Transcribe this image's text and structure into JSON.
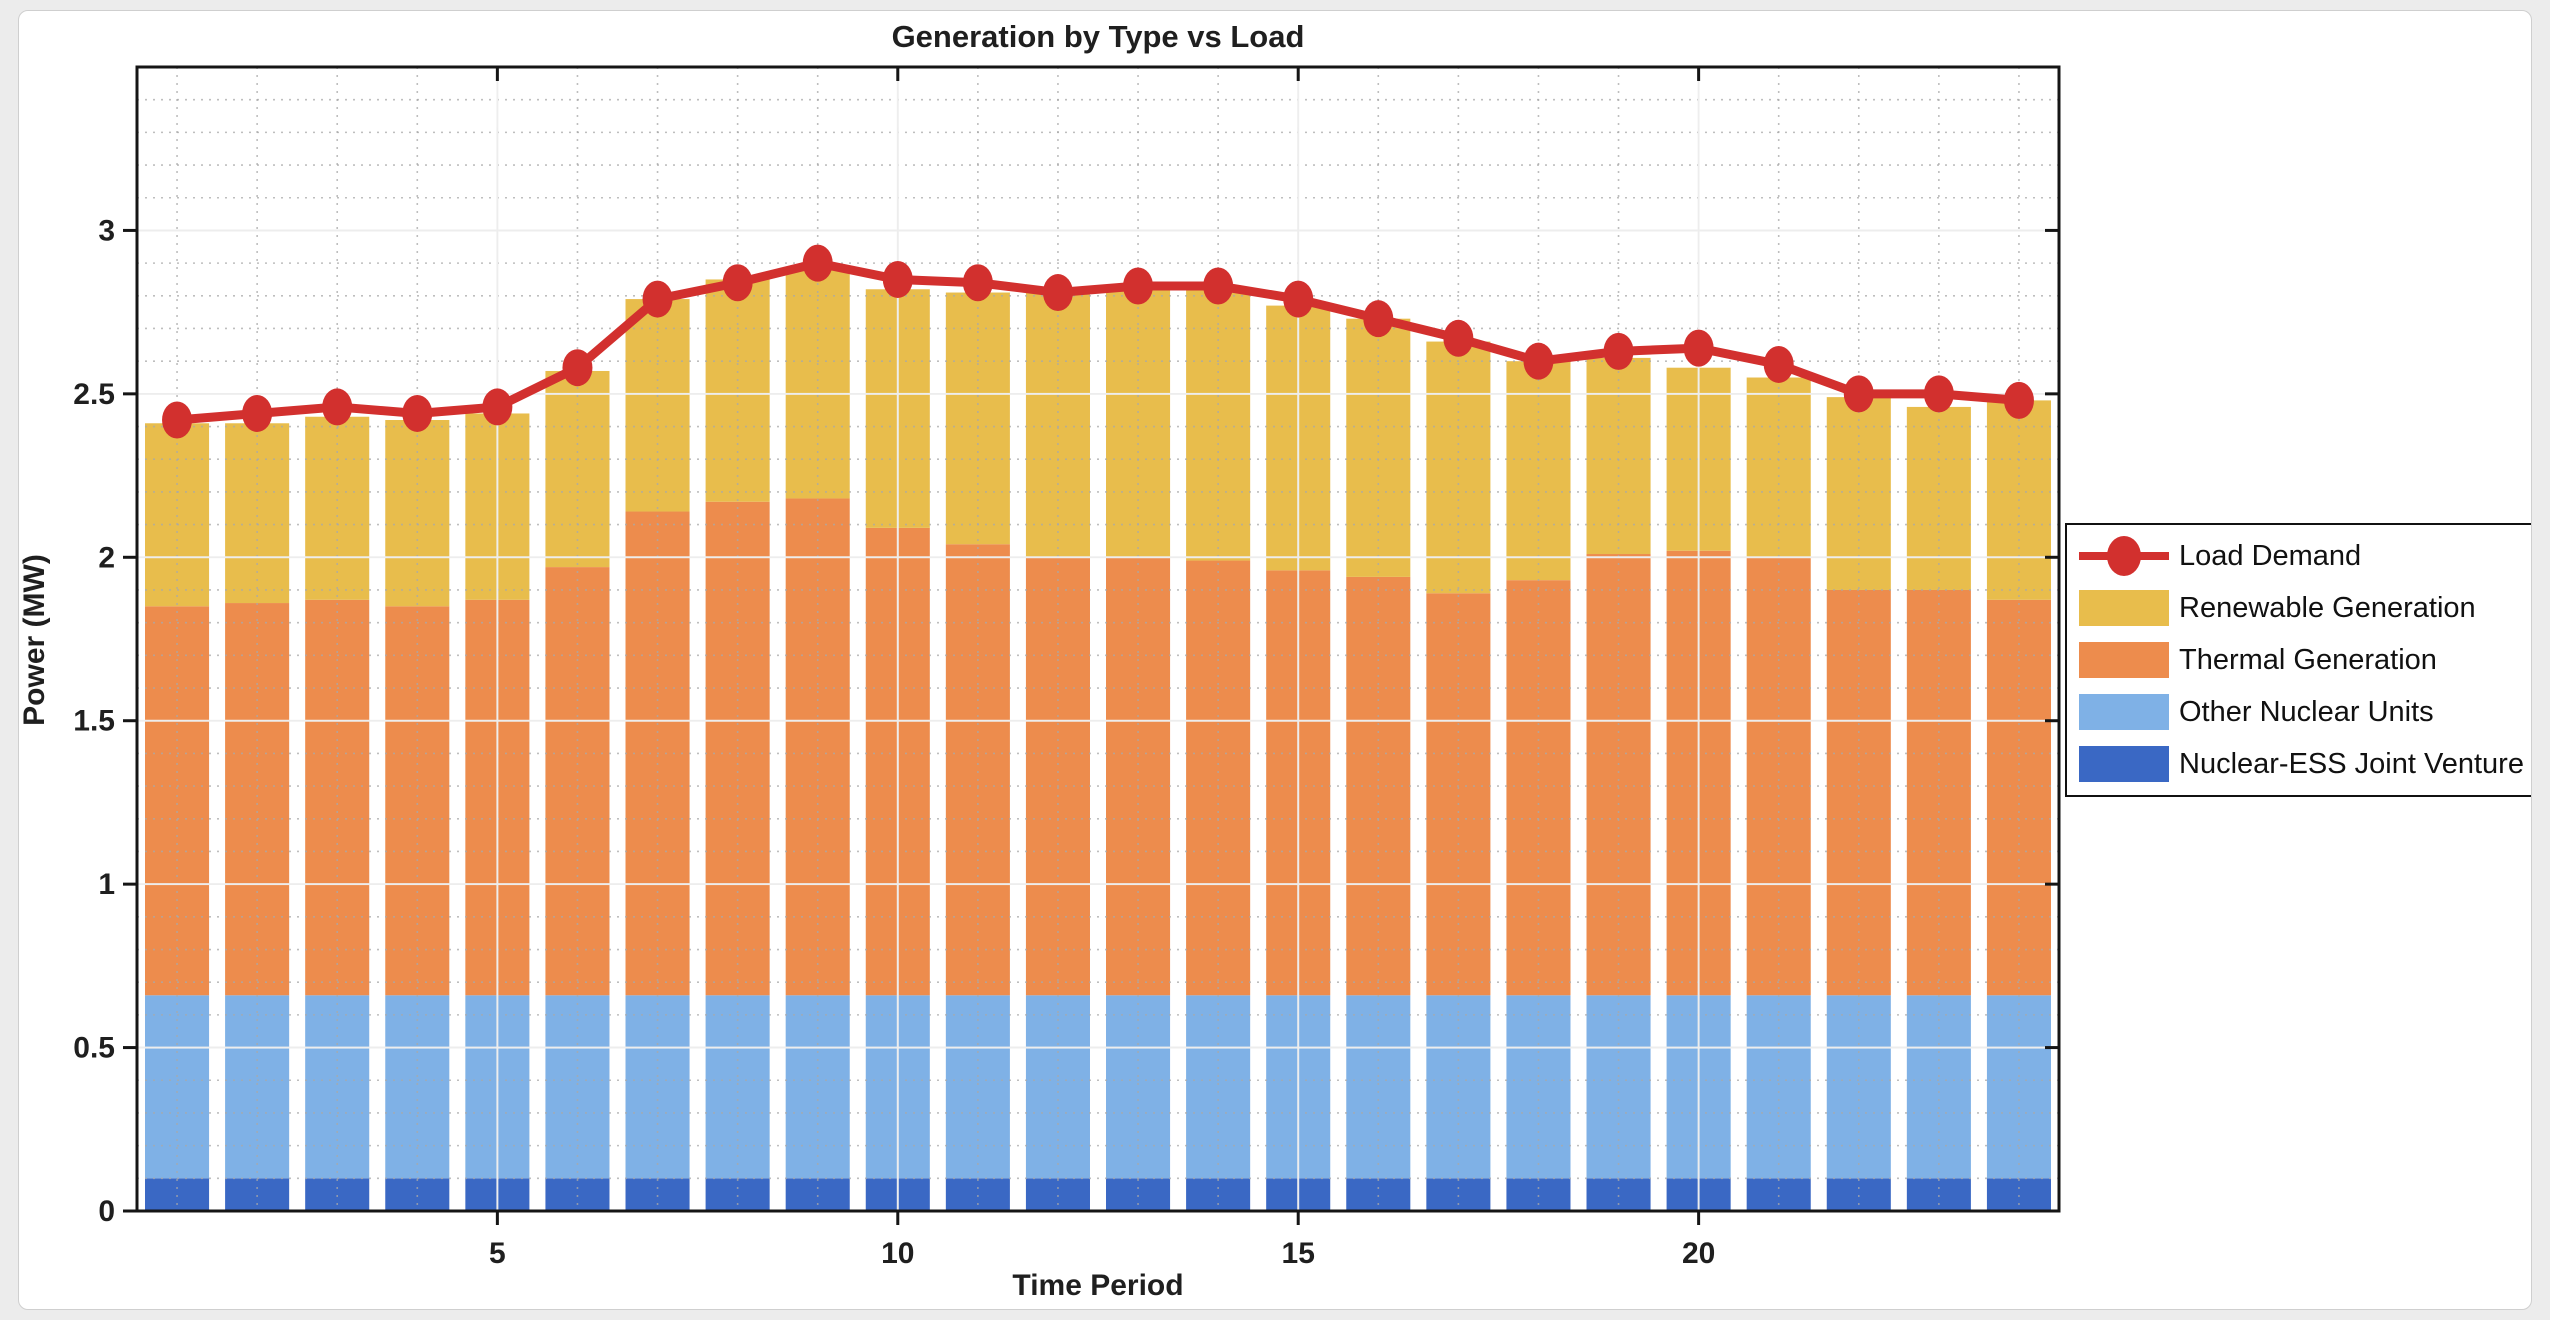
{
  "chart_data": {
    "type": "bar",
    "subtype": "stacked-bars-with-line-overlay",
    "title": "Generation by Type vs Load",
    "xlabel": "Time Period",
    "ylabel": "Power (MW)",
    "x": [
      1,
      2,
      3,
      4,
      5,
      6,
      7,
      8,
      9,
      10,
      11,
      12,
      13,
      14,
      15,
      16,
      17,
      18,
      19,
      20,
      21,
      22,
      23,
      24
    ],
    "xticks": [
      5,
      10,
      15,
      20
    ],
    "yticks": [
      0,
      0.5,
      1,
      1.5,
      2,
      2.5,
      3
    ],
    "ytick_labels": [
      "0",
      "0.5",
      "1",
      "1.5",
      "2",
      "2.5",
      "3"
    ],
    "ylim": [
      0,
      3.5
    ],
    "grid": {
      "major": true,
      "minor": true,
      "minor_step_y": 0.1,
      "minor_step_x": 1
    },
    "legend_position": "right-outside",
    "legend_order": [
      4,
      3,
      2,
      1,
      0
    ],
    "bar_width_fraction": 0.8,
    "series": [
      {
        "name": "Nuclear-ESS Joint Venture",
        "type": "bar",
        "color": "#3A68C4",
        "values": [
          0.1,
          0.1,
          0.1,
          0.1,
          0.1,
          0.1,
          0.1,
          0.1,
          0.1,
          0.1,
          0.1,
          0.1,
          0.1,
          0.1,
          0.1,
          0.1,
          0.1,
          0.1,
          0.1,
          0.1,
          0.1,
          0.1,
          0.1,
          0.1
        ]
      },
      {
        "name": "Other Nuclear Units",
        "type": "bar",
        "color": "#7FB1E6",
        "values": [
          0.56,
          0.56,
          0.56,
          0.56,
          0.56,
          0.56,
          0.56,
          0.56,
          0.56,
          0.56,
          0.56,
          0.56,
          0.56,
          0.56,
          0.56,
          0.56,
          0.56,
          0.56,
          0.56,
          0.56,
          0.56,
          0.56,
          0.56,
          0.56
        ]
      },
      {
        "name": "Thermal Generation",
        "type": "bar",
        "color": "#ED8C4D",
        "values": [
          1.19,
          1.2,
          1.21,
          1.19,
          1.21,
          1.31,
          1.48,
          1.51,
          1.52,
          1.43,
          1.38,
          1.34,
          1.34,
          1.33,
          1.3,
          1.28,
          1.23,
          1.27,
          1.35,
          1.36,
          1.34,
          1.24,
          1.24,
          1.21
        ]
      },
      {
        "name": "Renewable Generation",
        "type": "bar",
        "color": "#E8BD4C",
        "values": [
          0.56,
          0.55,
          0.56,
          0.57,
          0.57,
          0.6,
          0.65,
          0.68,
          0.7,
          0.73,
          0.77,
          0.81,
          0.82,
          0.83,
          0.81,
          0.79,
          0.77,
          0.67,
          0.6,
          0.56,
          0.55,
          0.59,
          0.56,
          0.61
        ]
      },
      {
        "name": "Load Demand",
        "type": "line",
        "color": "#D2302E",
        "values": [
          2.42,
          2.44,
          2.46,
          2.44,
          2.46,
          2.58,
          2.79,
          2.84,
          2.9,
          2.85,
          2.84,
          2.81,
          2.83,
          2.83,
          2.79,
          2.73,
          2.67,
          2.6,
          2.63,
          2.64,
          2.59,
          2.5,
          2.5,
          2.48
        ]
      }
    ],
    "colors": {
      "axis": "#151515",
      "major_grid": "#d9d9d9",
      "minor_grid": "#a9a9a9",
      "text": "#1f1f1f",
      "background": "#ffffff"
    }
  }
}
